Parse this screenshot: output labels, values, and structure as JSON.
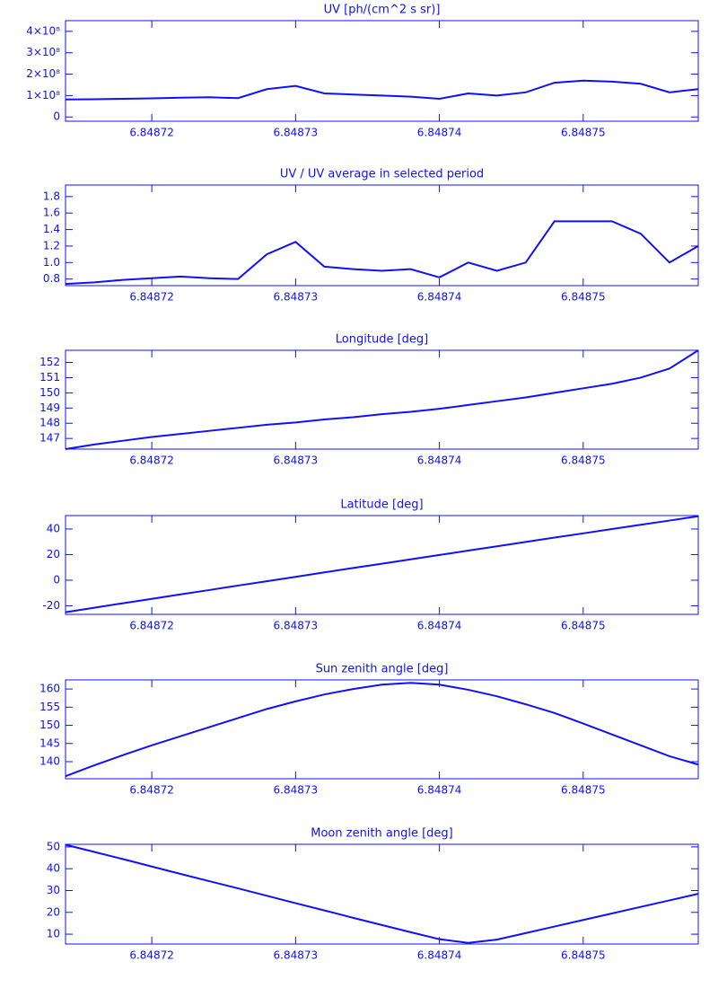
{
  "chart_data": [
    {
      "type": "line",
      "title": "UV [ph/(cm^2 s sr)]",
      "color": "#1010ff",
      "x": [
        6.848714,
        6.848716,
        6.848718,
        6.84872,
        6.848722,
        6.848724,
        6.848726,
        6.848728,
        6.84873,
        6.848732,
        6.848734,
        6.848736,
        6.848738,
        6.84874,
        6.848742,
        6.848744,
        6.848746,
        6.848748,
        6.84875,
        6.848752,
        6.848754,
        6.848756,
        6.848758
      ],
      "values": [
        82000000,
        83000000,
        85000000,
        87000000,
        90000000,
        92000000,
        88000000,
        130000000,
        145000000,
        110000000,
        105000000,
        100000000,
        95000000,
        85000000,
        110000000,
        100000000,
        115000000,
        160000000,
        170000000,
        165000000,
        155000000,
        115000000,
        130000000
      ],
      "xlim": [
        6.848714,
        6.848758
      ],
      "xticks": [
        6.84872,
        6.84873,
        6.84874,
        6.84875
      ],
      "ylim": [
        -20000000,
        450000000
      ],
      "yticks": [
        0,
        {
          "value": 100000000,
          "label": "1×10⁸"
        },
        {
          "value": 200000000,
          "label": "2×10⁸"
        },
        {
          "value": 300000000,
          "label": "3×10⁸"
        },
        {
          "value": 400000000,
          "label": "4×10⁸"
        }
      ]
    },
    {
      "type": "line",
      "title": "UV / UV average in selected period",
      "color": "#1010ff",
      "x": [
        6.848714,
        6.848716,
        6.848718,
        6.84872,
        6.848722,
        6.848724,
        6.848726,
        6.848728,
        6.84873,
        6.848732,
        6.848734,
        6.848736,
        6.848738,
        6.84874,
        6.848742,
        6.848744,
        6.848746,
        6.848748,
        6.84875,
        6.848752,
        6.848754,
        6.848756,
        6.848758
      ],
      "values": [
        0.74,
        0.76,
        0.79,
        0.81,
        0.83,
        0.81,
        0.8,
        1.1,
        1.25,
        0.95,
        0.92,
        0.9,
        0.92,
        0.82,
        1.0,
        0.9,
        1.0,
        1.5,
        1.5,
        1.5,
        1.35,
        1.0,
        1.2
      ],
      "xlim": [
        6.848714,
        6.848758
      ],
      "xticks": [
        6.84872,
        6.84873,
        6.84874,
        6.84875
      ],
      "ylim": [
        0.72,
        1.94
      ],
      "yticks": [
        0.8,
        {
          "value": 1,
          "label": "1.0"
        },
        1.2,
        1.4,
        1.6,
        1.8
      ]
    },
    {
      "type": "line",
      "title": "Longitude [deg]",
      "color": "#1010ff",
      "x": [
        6.848714,
        6.848716,
        6.848718,
        6.84872,
        6.848722,
        6.848724,
        6.848726,
        6.848728,
        6.84873,
        6.848732,
        6.848734,
        6.848736,
        6.848738,
        6.84874,
        6.848742,
        6.848744,
        6.848746,
        6.848748,
        6.84875,
        6.848752,
        6.848754,
        6.848756,
        6.848758
      ],
      "values": [
        146.3,
        146.6,
        146.85,
        147.1,
        147.3,
        147.5,
        147.7,
        147.9,
        148.05,
        148.25,
        148.4,
        148.6,
        148.75,
        148.95,
        149.2,
        149.45,
        149.7,
        150.0,
        150.3,
        150.6,
        151.0,
        151.6,
        152.8
      ],
      "xlim": [
        6.848714,
        6.848758
      ],
      "xticks": [
        6.84872,
        6.84873,
        6.84874,
        6.84875
      ],
      "ylim": [
        146.3,
        152.8
      ],
      "yticks": [
        147,
        148,
        149,
        150,
        151,
        152
      ]
    },
    {
      "type": "line",
      "title": "Latitude [deg]",
      "color": "#1010ff",
      "x": [
        6.848714,
        6.848716,
        6.848718,
        6.84872,
        6.848722,
        6.848724,
        6.848726,
        6.848728,
        6.84873,
        6.848732,
        6.848734,
        6.848736,
        6.848738,
        6.84874,
        6.848742,
        6.848744,
        6.848746,
        6.848748,
        6.84875,
        6.848752,
        6.848754,
        6.848756,
        6.848758
      ],
      "values": [
        -25,
        -21.5,
        -18,
        -14.6,
        -11.1,
        -7.7,
        -4.2,
        -0.8,
        2.6,
        6.1,
        9.5,
        12.9,
        16.3,
        19.7,
        23.1,
        26.5,
        29.9,
        33.3,
        36.6,
        40,
        43.3,
        46.6,
        50
      ],
      "xlim": [
        6.848714,
        6.848758
      ],
      "xticks": [
        6.84872,
        6.84873,
        6.84874,
        6.84875
      ],
      "ylim": [
        -26.7,
        50.5
      ],
      "yticks": [
        -20,
        0,
        20,
        40
      ]
    },
    {
      "type": "line",
      "title": "Sun zenith angle [deg]",
      "color": "#1010ff",
      "x": [
        6.848714,
        6.848716,
        6.848718,
        6.84872,
        6.848722,
        6.848724,
        6.848726,
        6.848728,
        6.84873,
        6.848732,
        6.848734,
        6.848736,
        6.848738,
        6.84874,
        6.848742,
        6.848744,
        6.848746,
        6.848748,
        6.84875,
        6.848752,
        6.848754,
        6.848756,
        6.848758
      ],
      "values": [
        136,
        139,
        141.8,
        144.5,
        147,
        149.5,
        152,
        154.5,
        156.6,
        158.5,
        160,
        161.2,
        161.7,
        161.2,
        159.8,
        158,
        155.8,
        153.4,
        150.5,
        147.5,
        144.5,
        141.5,
        139.2
      ],
      "xlim": [
        6.848714,
        6.848758
      ],
      "xticks": [
        6.84872,
        6.84873,
        6.84874,
        6.84875
      ],
      "ylim": [
        135.3,
        162.5
      ],
      "yticks": [
        140,
        145,
        150,
        155,
        160
      ]
    },
    {
      "type": "line",
      "title": "Moon zenith angle [deg]",
      "color": "#1010ff",
      "x": [
        6.848714,
        6.848716,
        6.848718,
        6.84872,
        6.848722,
        6.848724,
        6.848726,
        6.848728,
        6.84873,
        6.848732,
        6.848734,
        6.848736,
        6.848738,
        6.84874,
        6.848742,
        6.848744,
        6.848746,
        6.848748,
        6.84875,
        6.848752,
        6.848754,
        6.848756,
        6.848758
      ],
      "values": [
        51,
        47.7,
        44.4,
        41,
        37.6,
        34.3,
        31,
        27.6,
        24.2,
        20.9,
        17.5,
        14.2,
        10.9,
        7.7,
        6,
        7.5,
        10.5,
        13.5,
        16.5,
        19.5,
        22.5,
        25.5,
        28.5
      ],
      "xlim": [
        6.848714,
        6.848758
      ],
      "xticks": [
        6.84872,
        6.84873,
        6.84874,
        6.84875
      ],
      "ylim": [
        5.5,
        51.2
      ],
      "yticks": [
        10,
        20,
        30,
        40,
        50
      ]
    }
  ]
}
